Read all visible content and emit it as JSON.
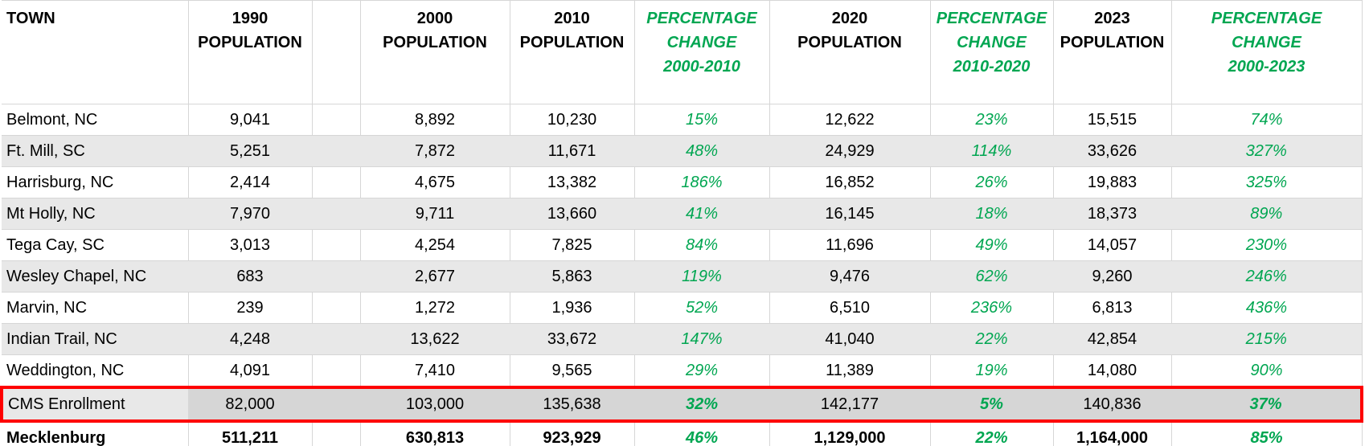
{
  "colors": {
    "accent_green": "#00a651",
    "highlight_border_red": "#fe0000",
    "stripe_gray": "#e8e8e8",
    "highlight_gray": "#d6d6d6",
    "gridline_gray": "#d6d6d6"
  },
  "table": {
    "columns": [
      {
        "key": "town",
        "type": "town",
        "label": "TOWN"
      },
      {
        "key": "pop1990",
        "type": "pop",
        "label": "1990\nPOPULATION"
      },
      {
        "key": "spacer",
        "type": "spacer",
        "label": ""
      },
      {
        "key": "pop2000",
        "type": "pop",
        "label": "2000\nPOPULATION"
      },
      {
        "key": "pop2010",
        "type": "pop",
        "label": "2010\nPOPULATION"
      },
      {
        "key": "pct2000_2010",
        "type": "pct",
        "label": "PERCENTAGE\nCHANGE\n2000-2010"
      },
      {
        "key": "pop2020",
        "type": "pop",
        "label": "2020\nPOPULATION"
      },
      {
        "key": "pct2010_2020",
        "type": "pct",
        "label": "PERCENTAGE\nCHANGE\n2010-2020"
      },
      {
        "key": "pop2023",
        "type": "pop",
        "label": "2023\nPOPULATION"
      },
      {
        "key": "pct2000_2023",
        "type": "pct",
        "label": "PERCENTAGE\nCHANGE\n2000-2023"
      }
    ],
    "rows": [
      {
        "style": "plain",
        "cells": {
          "town": "Belmont, NC",
          "pop1990": "9,041",
          "pop2000": "8,892",
          "pop2010": "10,230",
          "pct2000_2010": "15%",
          "pop2020": "12,622",
          "pct2010_2020": "23%",
          "pop2023": "15,515",
          "pct2000_2023": "74%"
        }
      },
      {
        "style": "stripe",
        "cells": {
          "town": "Ft. Mill, SC",
          "pop1990": "5,251",
          "pop2000": "7,872",
          "pop2010": "11,671",
          "pct2000_2010": "48%",
          "pop2020": "24,929",
          "pct2010_2020": "114%",
          "pop2023": "33,626",
          "pct2000_2023": "327%"
        }
      },
      {
        "style": "plain",
        "cells": {
          "town": "Harrisburg, NC",
          "pop1990": "2,414",
          "pop2000": "4,675",
          "pop2010": "13,382",
          "pct2000_2010": "186%",
          "pop2020": "16,852",
          "pct2010_2020": "26%",
          "pop2023": "19,883",
          "pct2000_2023": "325%"
        }
      },
      {
        "style": "stripe",
        "cells": {
          "town": "Mt Holly, NC",
          "pop1990": "7,970",
          "pop2000": "9,711",
          "pop2010": "13,660",
          "pct2000_2010": "41%",
          "pop2020": "16,145",
          "pct2010_2020": "18%",
          "pop2023": "18,373",
          "pct2000_2023": "89%"
        }
      },
      {
        "style": "plain",
        "cells": {
          "town": "Tega Cay, SC",
          "pop1990": "3,013",
          "pop2000": "4,254",
          "pop2010": "7,825",
          "pct2000_2010": "84%",
          "pop2020": "11,696",
          "pct2010_2020": "49%",
          "pop2023": "14,057",
          "pct2000_2023": "230%"
        }
      },
      {
        "style": "stripe",
        "cells": {
          "town": "Wesley Chapel, NC",
          "pop1990": "683",
          "pop2000": "2,677",
          "pop2010": "5,863",
          "pct2000_2010": "119%",
          "pop2020": "9,476",
          "pct2010_2020": "62%",
          "pop2023": "9,260",
          "pct2000_2023": "246%"
        }
      },
      {
        "style": "plain",
        "cells": {
          "town": "Marvin, NC",
          "pop1990": "239",
          "pop2000": "1,272",
          "pop2010": "1,936",
          "pct2000_2010": "52%",
          "pop2020": "6,510",
          "pct2010_2020": "236%",
          "pop2023": "6,813",
          "pct2000_2023": "436%"
        }
      },
      {
        "style": "stripe",
        "cells": {
          "town": "Indian Trail, NC",
          "pop1990": "4,248",
          "pop2000": "13,622",
          "pop2010": "33,672",
          "pct2000_2010": "147%",
          "pop2020": "41,040",
          "pct2010_2020": "22%",
          "pop2023": "42,854",
          "pct2000_2023": "215%"
        }
      },
      {
        "style": "plain",
        "cells": {
          "town": "Weddington, NC",
          "pop1990": "4,091",
          "pop2000": "7,410",
          "pop2010": "9,565",
          "pct2000_2010": "29%",
          "pop2020": "11,389",
          "pct2010_2020": "19%",
          "pop2023": "14,080",
          "pct2000_2023": "90%"
        }
      },
      {
        "style": "highlight",
        "cells": {
          "town": "CMS Enrollment",
          "pop1990": "82,000",
          "pop2000": "103,000",
          "pop2010": "135,638",
          "pct2000_2010": "32%",
          "pop2020": "142,177",
          "pct2010_2020": "5%",
          "pop2023": "140,836",
          "pct2000_2023": "37%"
        }
      },
      {
        "style": "total",
        "cells": {
          "town": "Mecklenburg",
          "pop1990": "511,211",
          "pop2000": "630,813",
          "pop2010": "923,929",
          "pct2000_2010": "46%",
          "pop2020": "1,129,000",
          "pct2010_2020": "22%",
          "pop2023": "1,164,000",
          "pct2000_2023": "85%"
        }
      }
    ]
  },
  "chart_data": {
    "type": "table",
    "columns": [
      "TOWN",
      "1990 POPULATION",
      "2000 POPULATION",
      "2010 POPULATION",
      "PERCENTAGE CHANGE 2000-2010",
      "2020 POPULATION",
      "PERCENTAGE CHANGE 2010-2020",
      "2023 POPULATION",
      "PERCENTAGE CHANGE 2000-2023"
    ],
    "percentage_columns_color": "#00a651",
    "highlighted_row": "CMS Enrollment",
    "highlight_style": "red outline with gray fill",
    "bold_total_row": "Mecklenburg",
    "rows": [
      {
        "town": "Belmont, NC",
        "pop_1990": 9041,
        "pop_2000": 8892,
        "pop_2010": 10230,
        "pct_change_2000_2010": 15,
        "pop_2020": 12622,
        "pct_change_2010_2020": 23,
        "pop_2023": 15515,
        "pct_change_2000_2023": 74
      },
      {
        "town": "Ft. Mill, SC",
        "pop_1990": 5251,
        "pop_2000": 7872,
        "pop_2010": 11671,
        "pct_change_2000_2010": 48,
        "pop_2020": 24929,
        "pct_change_2010_2020": 114,
        "pop_2023": 33626,
        "pct_change_2000_2023": 327
      },
      {
        "town": "Harrisburg, NC",
        "pop_1990": 2414,
        "pop_2000": 4675,
        "pop_2010": 13382,
        "pct_change_2000_2010": 186,
        "pop_2020": 16852,
        "pct_change_2010_2020": 26,
        "pop_2023": 19883,
        "pct_change_2000_2023": 325
      },
      {
        "town": "Mt Holly, NC",
        "pop_1990": 7970,
        "pop_2000": 9711,
        "pop_2010": 13660,
        "pct_change_2000_2010": 41,
        "pop_2020": 16145,
        "pct_change_2010_2020": 18,
        "pop_2023": 18373,
        "pct_change_2000_2023": 89
      },
      {
        "town": "Tega Cay, SC",
        "pop_1990": 3013,
        "pop_2000": 4254,
        "pop_2010": 7825,
        "pct_change_2000_2010": 84,
        "pop_2020": 11696,
        "pct_change_2010_2020": 49,
        "pop_2023": 14057,
        "pct_change_2000_2023": 230
      },
      {
        "town": "Wesley Chapel, NC",
        "pop_1990": 683,
        "pop_2000": 2677,
        "pop_2010": 5863,
        "pct_change_2000_2010": 119,
        "pop_2020": 9476,
        "pct_change_2010_2020": 62,
        "pop_2023": 9260,
        "pct_change_2000_2023": 246
      },
      {
        "town": "Marvin, NC",
        "pop_1990": 239,
        "pop_2000": 1272,
        "pop_2010": 1936,
        "pct_change_2000_2010": 52,
        "pop_2020": 6510,
        "pct_change_2010_2020": 236,
        "pop_2023": 6813,
        "pct_change_2000_2023": 436
      },
      {
        "town": "Indian Trail, NC",
        "pop_1990": 4248,
        "pop_2000": 13622,
        "pop_2010": 33672,
        "pct_change_2000_2010": 147,
        "pop_2020": 41040,
        "pct_change_2010_2020": 22,
        "pop_2023": 42854,
        "pct_change_2000_2023": 215
      },
      {
        "town": "Weddington, NC",
        "pop_1990": 4091,
        "pop_2000": 7410,
        "pop_2010": 9565,
        "pct_change_2000_2010": 29,
        "pop_2020": 11389,
        "pct_change_2010_2020": 19,
        "pop_2023": 14080,
        "pct_change_2000_2023": 90
      },
      {
        "town": "CMS Enrollment",
        "pop_1990": 82000,
        "pop_2000": 103000,
        "pop_2010": 135638,
        "pct_change_2000_2010": 32,
        "pop_2020": 142177,
        "pct_change_2010_2020": 5,
        "pop_2023": 140836,
        "pct_change_2000_2023": 37
      },
      {
        "town": "Mecklenburg",
        "pop_1990": 511211,
        "pop_2000": 630813,
        "pop_2010": 923929,
        "pct_change_2000_2010": 46,
        "pop_2020": 1129000,
        "pct_change_2010_2020": 22,
        "pop_2023": 1164000,
        "pct_change_2000_2023": 85
      }
    ]
  }
}
